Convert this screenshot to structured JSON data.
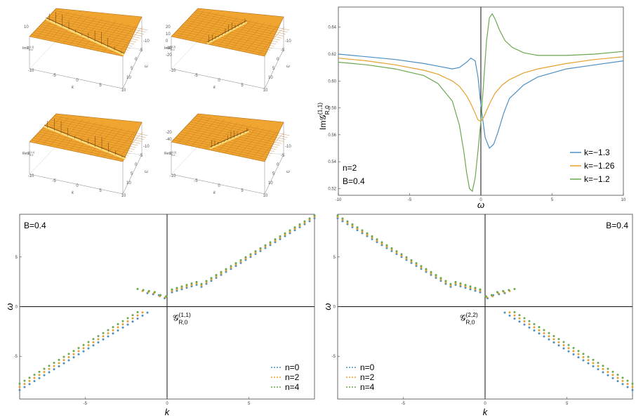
{
  "surfaces": [
    {
      "zlabel": "Im𝒢(1,1)R,0",
      "ticks_z": [
        "10"
      ],
      "ticks_k": [
        "-10",
        "-5",
        "0",
        "5",
        "10"
      ],
      "kaxis": "k",
      "waxis": "ω",
      "ticks_w": [
        "10",
        "5",
        "0",
        "-5",
        "-10"
      ]
    },
    {
      "zlabel": "Im𝒢(2,2)R,0",
      "ticks_z": [
        "20",
        "10",
        "0",
        "-10",
        "-20"
      ],
      "ticks_k": [
        "-10",
        "-5",
        "0",
        "5",
        "10"
      ],
      "kaxis": "k",
      "waxis": "ω",
      "ticks_w": [
        "10",
        "5",
        "0",
        "-5",
        "-10"
      ]
    },
    {
      "zlabel": "Re𝒢(1,1)R,0",
      "ticks_z": [],
      "ticks_k": [
        "-10",
        "-5",
        "0",
        "5",
        "10"
      ],
      "kaxis": "k",
      "waxis": "ω",
      "ticks_w": [
        "10",
        "5",
        "0",
        "-5",
        "-10"
      ]
    },
    {
      "zlabel": "Re𝒢(2,2)R,0",
      "ticks_z": [
        "-20",
        "-40"
      ],
      "ticks_k": [
        "-10",
        "-5",
        "0",
        "5",
        "10"
      ],
      "kaxis": "k",
      "waxis": "ω",
      "ticks_w": [
        "10",
        "5",
        "0",
        "-5",
        "-10"
      ]
    }
  ],
  "chart_data": [
    {
      "type": "line",
      "xlabel": "ω",
      "ylabel": "Im𝒢(1,1)R,0",
      "xlim": [
        -10,
        10
      ],
      "ylim": [
        0.515,
        0.655
      ],
      "xticks": [
        -10,
        -5,
        0,
        5,
        10
      ],
      "yticks": [
        0.52,
        0.54,
        0.56,
        0.58,
        0.6,
        0.62,
        0.64
      ],
      "ytick_labels": [
        "0.52",
        "0.54",
        "0.56",
        "0.58",
        "0.60",
        "0.62",
        "0.64"
      ],
      "annotations": [
        "n=2",
        "B=0.4"
      ],
      "legend_position": "bottom-right",
      "series": [
        {
          "name": "k=−1.3",
          "color": "#4c8fc4",
          "x": [
            -10,
            -8,
            -6,
            -4,
            -3,
            -2,
            -1.5,
            -1,
            -0.7,
            -0.4,
            -0.2,
            0,
            0.3,
            0.6,
            0.9,
            1.2,
            1.6,
            2,
            3,
            4,
            6,
            8,
            10
          ],
          "y": [
            0.62,
            0.618,
            0.616,
            0.613,
            0.611,
            0.609,
            0.61,
            0.614,
            0.617,
            0.615,
            0.603,
            0.582,
            0.558,
            0.55,
            0.553,
            0.562,
            0.576,
            0.587,
            0.597,
            0.603,
            0.609,
            0.612,
            0.615
          ]
        },
        {
          "name": "k=−1.26",
          "color": "#e7a02f",
          "x": [
            -10,
            -8,
            -6,
            -4,
            -3,
            -2,
            -1.5,
            -1,
            -0.7,
            -0.4,
            -0.2,
            0,
            0.2,
            0.4,
            0.7,
            1,
            1.5,
            2,
            3,
            4,
            6,
            8,
            10
          ],
          "y": [
            0.617,
            0.615,
            0.612,
            0.608,
            0.605,
            0.6,
            0.596,
            0.589,
            0.583,
            0.576,
            0.571,
            0.57,
            0.573,
            0.578,
            0.585,
            0.591,
            0.597,
            0.601,
            0.606,
            0.609,
            0.613,
            0.616,
            0.618
          ]
        },
        {
          "name": "k=−1.2",
          "color": "#6aa84f",
          "x": [
            -10,
            -8,
            -6,
            -4,
            -3,
            -2,
            -1.5,
            -1.2,
            -1,
            -0.8,
            -0.6,
            -0.4,
            -0.2,
            0,
            0.2,
            0.4,
            0.6,
            0.8,
            1,
            1.3,
            1.7,
            2.2,
            3,
            4,
            6,
            8,
            10
          ],
          "y": [
            0.614,
            0.612,
            0.609,
            0.604,
            0.598,
            0.585,
            0.567,
            0.548,
            0.532,
            0.52,
            0.518,
            0.528,
            0.548,
            0.57,
            0.6,
            0.63,
            0.647,
            0.65,
            0.646,
            0.638,
            0.63,
            0.625,
            0.621,
            0.619,
            0.619,
            0.62,
            0.622
          ]
        }
      ]
    },
    {
      "type": "scatter",
      "xlabel": "k",
      "ylabel": "ω",
      "xlim": [
        -9,
        9
      ],
      "ylim": [
        -9.3,
        9.3
      ],
      "xticks": [
        -5,
        0,
        5
      ],
      "yticks": [
        -5,
        0,
        5
      ],
      "annotations": [
        "B=0.4",
        "𝒢(1,1)R,0"
      ],
      "legend_position": "bottom-right",
      "series": [
        {
          "name": "n=0",
          "color": "#4c8fc4",
          "ofs": 0
        },
        {
          "name": "n=2",
          "color": "#e7a02f",
          "ofs": 0.2
        },
        {
          "name": "n=4",
          "color": "#6aa84f",
          "ofs": 0.4
        }
      ]
    },
    {
      "type": "scatter",
      "xlabel": "k",
      "ylabel": "ω",
      "xlim": [
        -9,
        9
      ],
      "ylim": [
        -9.3,
        9.3
      ],
      "xticks": [
        -5,
        0,
        5
      ],
      "yticks": [
        -5,
        0,
        5
      ],
      "annotations": [
        "B=0.4",
        "𝒢(2,2)R,0"
      ],
      "legend_position": "bottom-left",
      "series": [
        {
          "name": "n=0",
          "color": "#4c8fc4",
          "ofs": 0
        },
        {
          "name": "n=2",
          "color": "#e7a02f",
          "ofs": 0.2
        },
        {
          "name": "n=4",
          "color": "#6aa84f",
          "ofs": 0.4
        }
      ]
    }
  ]
}
